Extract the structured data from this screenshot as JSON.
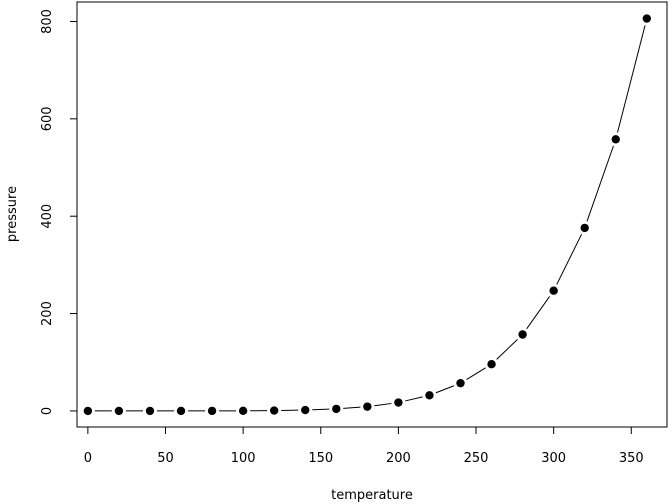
{
  "chart_data": {
    "type": "line",
    "title": "",
    "xlabel": "temperature",
    "ylabel": "pressure",
    "xlim": [
      -7,
      373
    ],
    "ylim": [
      -33,
      840
    ],
    "xticks": [
      0,
      50,
      100,
      150,
      200,
      250,
      300,
      350
    ],
    "yticks": [
      0,
      200,
      400,
      600,
      800
    ],
    "grid": false,
    "legend": "none",
    "marker": "filled-circle",
    "line_style": "lines with gaps at points (type b)",
    "series": [
      {
        "x": [
          0,
          20,
          40,
          60,
          80,
          100,
          120,
          140,
          160,
          180,
          200,
          220,
          240,
          260,
          280,
          300,
          320,
          340,
          360
        ],
        "y": [
          0.0002,
          0.0012,
          0.006,
          0.03,
          0.09,
          0.27,
          0.75,
          1.85,
          4.2,
          8.8,
          17.3,
          32.1,
          57.0,
          96.0,
          157.0,
          247.0,
          376.0,
          558.0,
          806.0
        ],
        "color": "#000000"
      }
    ]
  }
}
